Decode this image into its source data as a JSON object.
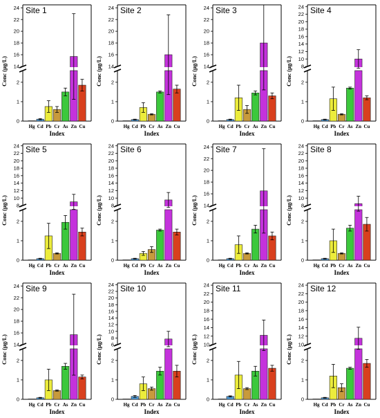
{
  "figure": {
    "ylabel": "Conc (μg/L)",
    "xlabel": "Index"
  },
  "colors": {
    "Hg": "#f4f4f4",
    "Cd": "#4f9ad6",
    "Pb": "#ecec3c",
    "Cr": "#c89a3c",
    "As": "#3cc83c",
    "Zn": "#c432dc",
    "Cu": "#d8401e"
  },
  "chart_data": [
    {
      "type": "bar",
      "title": "Site 1",
      "categories": [
        "Hg",
        "Cd",
        "Pb",
        "Cr",
        "As",
        "Zn",
        "Cu"
      ],
      "values": [
        0.02,
        0.1,
        0.75,
        0.6,
        1.5,
        15.7,
        1.85
      ],
      "errors": [
        0,
        0.03,
        0.3,
        0.15,
        0.2,
        7.3,
        0.3
      ],
      "lower_yticks": [
        0,
        1,
        2
      ],
      "upper_yticks": [
        14,
        16,
        18,
        20,
        22,
        24
      ],
      "upper_ylim": [
        14,
        24.5
      ],
      "xlabel": "Index",
      "ylabel": "Conc (μg/L)"
    },
    {
      "type": "bar",
      "title": "Site 2",
      "categories": [
        "Hg",
        "Cd",
        "Pb",
        "Cr",
        "As",
        "Zn",
        "Cu"
      ],
      "values": [
        0.02,
        0.08,
        0.7,
        0.35,
        1.5,
        16.0,
        1.65
      ],
      "errors": [
        0,
        0.02,
        0.25,
        0.03,
        0.05,
        6.8,
        0.2
      ],
      "lower_yticks": [
        0,
        1,
        2
      ],
      "upper_yticks": [
        14,
        16,
        18,
        20,
        22,
        24
      ],
      "upper_ylim": [
        14,
        24.5
      ],
      "xlabel": "Index",
      "ylabel": "Conc (μg/L)"
    },
    {
      "type": "bar",
      "title": "Site 3",
      "categories": [
        "Hg",
        "Cd",
        "Pb",
        "Cr",
        "As",
        "Zn",
        "Cu"
      ],
      "values": [
        0.02,
        0.08,
        1.2,
        0.6,
        1.45,
        18.0,
        1.3
      ],
      "errors": [
        0,
        0.02,
        0.65,
        0.2,
        0.1,
        8.0,
        0.15
      ],
      "lower_yticks": [
        0,
        1,
        2
      ],
      "upper_yticks": [
        14,
        16,
        18,
        20,
        22,
        24
      ],
      "upper_ylim": [
        14,
        24.5
      ],
      "xlabel": "Index",
      "ylabel": "Conc (μg/L)"
    },
    {
      "type": "bar",
      "title": "Site 4",
      "categories": [
        "Hg",
        "Cd",
        "Pb",
        "Cr",
        "As",
        "Zn",
        "Cu"
      ],
      "values": [
        0.02,
        0.08,
        1.15,
        0.35,
        1.7,
        10.0,
        1.2
      ],
      "errors": [
        0,
        0.02,
        0.6,
        0.03,
        0.05,
        2.5,
        0.1
      ],
      "lower_yticks": [
        0,
        1,
        2
      ],
      "upper_yticks": [
        8,
        10,
        12,
        14,
        16,
        18,
        20,
        22,
        24
      ],
      "upper_ylim": [
        8,
        24.5
      ],
      "xlabel": "Index",
      "ylabel": "Conc (μg/L)"
    },
    {
      "type": "bar",
      "title": "Site 5",
      "categories": [
        "Hg",
        "Cd",
        "Pb",
        "Cr",
        "As",
        "Zn",
        "Cu"
      ],
      "values": [
        0.02,
        0.08,
        1.25,
        0.35,
        1.95,
        9.0,
        1.45
      ],
      "errors": [
        0,
        0.02,
        0.65,
        0.03,
        0.35,
        2.0,
        0.2
      ],
      "lower_yticks": [
        0,
        1,
        2
      ],
      "upper_yticks": [
        8,
        10,
        12,
        14,
        16,
        18,
        20,
        22,
        24
      ],
      "upper_ylim": [
        8,
        24.5
      ],
      "xlabel": "Index",
      "ylabel": "Conc (μg/L)"
    },
    {
      "type": "bar",
      "title": "Site 6",
      "categories": [
        "Hg",
        "Cd",
        "Pb",
        "Cr",
        "As",
        "Zn",
        "Cu"
      ],
      "values": [
        0.02,
        0.08,
        0.35,
        0.55,
        1.55,
        9.5,
        1.45
      ],
      "errors": [
        0,
        0.02,
        0.1,
        0.15,
        0.05,
        2.0,
        0.15
      ],
      "lower_yticks": [
        0,
        1,
        2
      ],
      "upper_yticks": [
        8,
        10,
        12,
        14,
        16,
        18,
        20,
        22,
        24
      ],
      "upper_ylim": [
        8,
        24.5
      ],
      "xlabel": "Index",
      "ylabel": "Conc (μg/L)"
    },
    {
      "type": "bar",
      "title": "Site 7",
      "categories": [
        "Hg",
        "Cd",
        "Pb",
        "Cr",
        "As",
        "Zn",
        "Cu"
      ],
      "values": [
        0.02,
        0.08,
        0.8,
        0.35,
        1.6,
        16.5,
        1.25
      ],
      "errors": [
        0,
        0.02,
        0.45,
        0.03,
        0.2,
        7.2,
        0.2
      ],
      "lower_yticks": [
        0,
        1,
        2
      ],
      "upper_yticks": [
        14,
        16,
        18,
        20,
        22,
        24
      ],
      "upper_ylim": [
        14,
        24.5
      ],
      "xlabel": "Index",
      "ylabel": "Conc (μg/L)"
    },
    {
      "type": "bar",
      "title": "Site 8",
      "categories": [
        "Hg",
        "Cd",
        "Pb",
        "Cr",
        "As",
        "Zn",
        "Cu"
      ],
      "values": [
        0.02,
        0.08,
        1.0,
        0.35,
        1.65,
        8.5,
        1.85
      ],
      "errors": [
        0,
        0.02,
        0.6,
        0.03,
        0.15,
        2.0,
        0.35
      ],
      "lower_yticks": [
        0,
        1,
        2
      ],
      "upper_yticks": [
        8,
        10,
        12,
        14,
        16,
        18,
        20,
        22,
        24
      ],
      "upper_ylim": [
        8,
        24.5
      ],
      "xlabel": "Index",
      "ylabel": "Conc (μg/L)"
    },
    {
      "type": "bar",
      "title": "Site 9",
      "categories": [
        "Hg",
        "Cd",
        "Pb",
        "Cr",
        "As",
        "Zn",
        "Cu"
      ],
      "values": [
        0.02,
        0.08,
        1.0,
        0.45,
        1.7,
        15.7,
        1.15
      ],
      "errors": [
        0,
        0.02,
        0.55,
        0.03,
        0.15,
        6.9,
        0.1
      ],
      "lower_yticks": [
        0,
        1,
        2
      ],
      "upper_yticks": [
        14,
        16,
        18,
        20,
        22,
        24
      ],
      "upper_ylim": [
        14,
        24.5
      ],
      "xlabel": "Index",
      "ylabel": "Conc (μg/L)"
    },
    {
      "type": "bar",
      "title": "Site 10",
      "categories": [
        "Hg",
        "Cd",
        "Pb",
        "Cr",
        "As",
        "Zn",
        "Cu"
      ],
      "values": [
        0.02,
        0.15,
        0.8,
        0.55,
        1.45,
        7.7,
        1.45
      ],
      "errors": [
        0,
        0.05,
        0.35,
        0.08,
        0.2,
        2.3,
        0.3
      ],
      "lower_yticks": [
        0,
        1,
        2
      ],
      "upper_yticks": [
        6,
        8,
        10,
        12,
        14,
        16,
        18,
        20,
        22,
        24
      ],
      "upper_ylim": [
        6,
        24.5
      ],
      "xlabel": "Index",
      "ylabel": "Conc (μg/L)"
    },
    {
      "type": "bar",
      "title": "Site 11",
      "categories": [
        "Hg",
        "Cd",
        "Pb",
        "Cr",
        "As",
        "Zn",
        "Cu"
      ],
      "values": [
        0.02,
        0.15,
        1.25,
        0.55,
        1.45,
        12.2,
        1.6
      ],
      "errors": [
        0,
        0.03,
        0.7,
        0.05,
        0.25,
        3.6,
        0.15
      ],
      "lower_yticks": [
        0,
        1,
        2
      ],
      "upper_yticks": [
        10,
        12,
        14,
        16,
        18,
        20,
        22,
        24
      ],
      "upper_ylim": [
        10,
        24.5
      ],
      "xlabel": "Index",
      "ylabel": "Conc (μg/L)"
    },
    {
      "type": "bar",
      "title": "Site 12",
      "categories": [
        "Hg",
        "Cd",
        "Pb",
        "Cr",
        "As",
        "Zn",
        "Cu"
      ],
      "values": [
        0.02,
        0.08,
        1.2,
        0.6,
        1.6,
        11.5,
        1.85
      ],
      "errors": [
        0,
        0.02,
        0.6,
        0.2,
        0.05,
        2.6,
        0.2
      ],
      "lower_yticks": [
        0,
        1,
        2
      ],
      "upper_yticks": [
        10,
        12,
        14,
        16,
        18,
        20,
        22,
        24
      ],
      "upper_ylim": [
        10,
        24.5
      ],
      "xlabel": "Index",
      "ylabel": "Conc (μg/L)"
    }
  ]
}
